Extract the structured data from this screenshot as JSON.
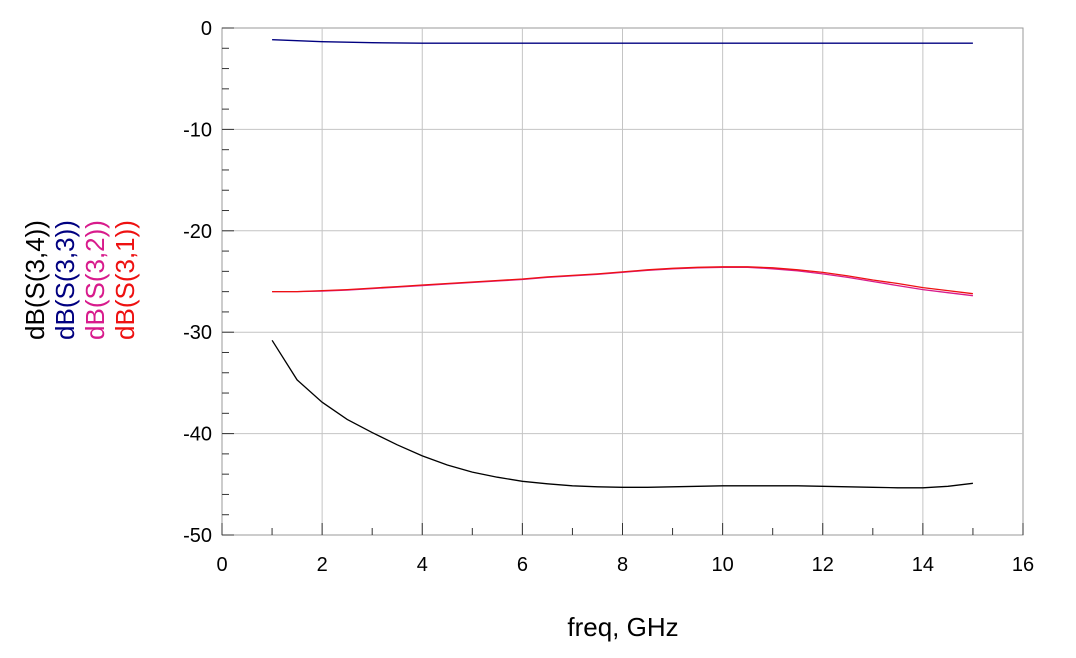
{
  "chart_data": {
    "type": "line",
    "xlabel": "freq, GHz",
    "ylabel_entries": [
      "dB(S(3,4))",
      "dB(S(3,3))",
      "dB(S(3,2))",
      "dB(S(3,1))"
    ],
    "xlim": [
      0,
      16
    ],
    "ylim": [
      -50,
      0
    ],
    "x_ticks": [
      0,
      2,
      4,
      6,
      8,
      10,
      12,
      14,
      16
    ],
    "y_ticks": [
      0,
      -10,
      -20,
      -30,
      -40,
      -50
    ],
    "x_tick_labels": [
      "0",
      "2",
      "4",
      "6",
      "8",
      "10",
      "12",
      "14",
      "16"
    ],
    "y_tick_labels": [
      "0",
      "-10",
      "-20",
      "-30",
      "-40",
      "-50"
    ],
    "grid": true,
    "x_minor_step": 1,
    "y_minor_step": 2,
    "series": [
      {
        "name": "dB(S(3,4))",
        "color": "#000000",
        "x": [
          1,
          1.5,
          2,
          2.5,
          3,
          3.5,
          4,
          4.5,
          5,
          5.5,
          6,
          6.5,
          7,
          7.5,
          8,
          8.5,
          9,
          9.5,
          10,
          10.5,
          11,
          11.5,
          12,
          12.5,
          13,
          13.5,
          14,
          14.5,
          15
        ],
        "y": [
          -30.8,
          -34.7,
          -36.9,
          -38.6,
          -39.9,
          -41.1,
          -42.2,
          -43.1,
          -43.8,
          -44.3,
          -44.7,
          -44.95,
          -45.15,
          -45.25,
          -45.3,
          -45.3,
          -45.25,
          -45.2,
          -45.15,
          -45.15,
          -45.15,
          -45.15,
          -45.2,
          -45.25,
          -45.3,
          -45.35,
          -45.35,
          -45.2,
          -44.9
        ]
      },
      {
        "name": "dB(S(3,3))",
        "color": "#000080",
        "x": [
          1,
          1.5,
          2,
          2.5,
          3,
          4,
          5,
          6,
          7,
          8,
          9,
          10,
          11,
          12,
          13,
          14,
          15
        ],
        "y": [
          -1.15,
          -1.25,
          -1.35,
          -1.4,
          -1.45,
          -1.5,
          -1.5,
          -1.5,
          -1.5,
          -1.5,
          -1.5,
          -1.5,
          -1.5,
          -1.5,
          -1.5,
          -1.5,
          -1.5
        ]
      },
      {
        "name": "dB(S(3,2))",
        "color": "#d81b8c",
        "x": [
          1,
          1.5,
          2,
          2.5,
          3,
          3.5,
          4,
          4.5,
          5,
          5.5,
          6,
          6.5,
          7,
          7.5,
          8,
          8.5,
          9,
          9.5,
          10,
          10.5,
          11,
          11.5,
          12,
          12.5,
          13,
          13.5,
          14,
          14.5,
          15
        ],
        "y": [
          -26.0,
          -26.0,
          -25.95,
          -25.85,
          -25.7,
          -25.55,
          -25.4,
          -25.25,
          -25.1,
          -24.95,
          -24.8,
          -24.6,
          -24.45,
          -24.3,
          -24.1,
          -23.9,
          -23.75,
          -23.65,
          -23.6,
          -23.6,
          -23.75,
          -23.95,
          -24.25,
          -24.6,
          -25.0,
          -25.4,
          -25.8,
          -26.1,
          -26.4
        ]
      },
      {
        "name": "dB(S(3,1))",
        "color": "#ee1111",
        "x": [
          1,
          1.5,
          2,
          2.5,
          3,
          3.5,
          4,
          4.5,
          5,
          5.5,
          6,
          6.5,
          7,
          7.5,
          8,
          8.5,
          9,
          9.5,
          10,
          10.5,
          11,
          11.5,
          12,
          12.5,
          13,
          13.5,
          14,
          14.5,
          15
        ],
        "y": [
          -26.0,
          -26.0,
          -25.9,
          -25.8,
          -25.65,
          -25.5,
          -25.35,
          -25.2,
          -25.05,
          -24.9,
          -24.75,
          -24.55,
          -24.4,
          -24.25,
          -24.05,
          -23.85,
          -23.7,
          -23.6,
          -23.55,
          -23.55,
          -23.65,
          -23.85,
          -24.1,
          -24.45,
          -24.85,
          -25.2,
          -25.6,
          -25.9,
          -26.2
        ]
      }
    ]
  }
}
